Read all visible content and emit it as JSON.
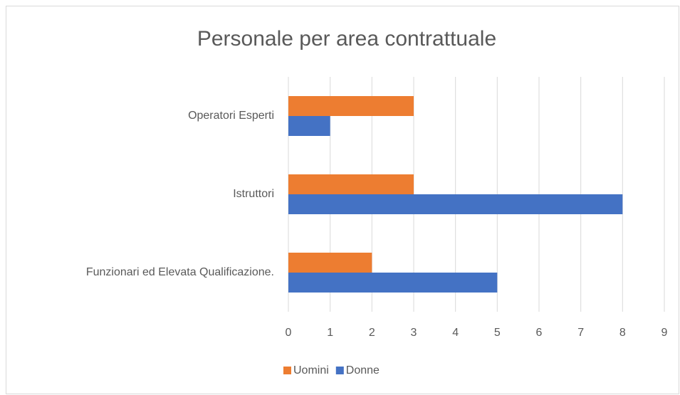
{
  "chart_data": {
    "type": "barh",
    "title": "Personale per area contrattuale",
    "categories": [
      "Operatori Esperti",
      "Istruttori",
      "Funzionari ed Elevata Qualificazione."
    ],
    "series": [
      {
        "name": "Uomini",
        "color": "#ed7d31",
        "values": [
          3,
          3,
          2
        ]
      },
      {
        "name": "Donne",
        "color": "#4472c4",
        "values": [
          1,
          8,
          5
        ]
      }
    ],
    "xlim": [
      0,
      9
    ],
    "xticks": [
      0,
      1,
      2,
      3,
      4,
      5,
      6,
      7,
      8,
      9
    ],
    "grid": true,
    "legend": "bottom"
  }
}
